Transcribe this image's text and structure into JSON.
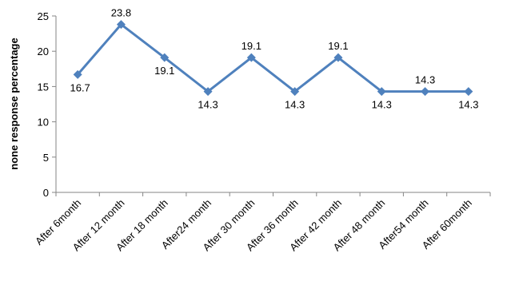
{
  "colors": {
    "series": "#4F81BD",
    "axis": "#868686"
  },
  "chart_data": {
    "type": "line",
    "title": "",
    "xlabel": "",
    "ylabel": "none response percentage",
    "ylim": [
      0,
      25
    ],
    "yticks": [
      0,
      5,
      10,
      15,
      20,
      25
    ],
    "ytick_labels": [
      "0",
      "5",
      "10",
      "15",
      "20",
      "25"
    ],
    "grid": false,
    "legend": "none",
    "categories": [
      "After 6month",
      "After 12 month",
      "After 18 month",
      "After24 month",
      "After 30  month",
      "After 36 month",
      "After 42 month",
      "After 48 month",
      "After54 month",
      "After 60month"
    ],
    "series": [
      {
        "values": [
          16.7,
          23.8,
          19.1,
          14.3,
          19.1,
          14.3,
          19.1,
          14.3,
          14.3,
          14.3
        ],
        "labels": [
          "16.7",
          "23.8",
          "19.1",
          "14.3",
          "19.1",
          "14.3",
          "19.1",
          "14.3",
          "14.3",
          "14.3"
        ]
      }
    ]
  }
}
